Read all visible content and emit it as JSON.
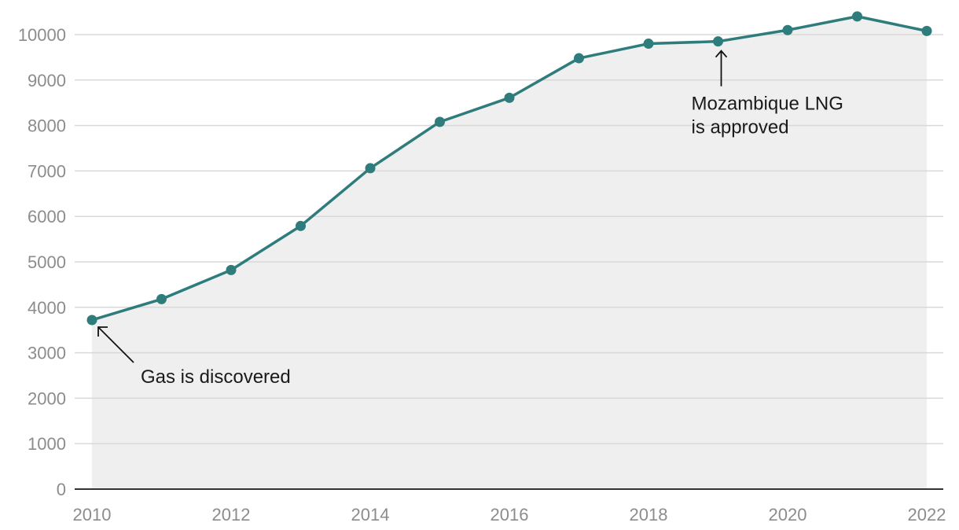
{
  "chart_data": {
    "type": "area",
    "title": "",
    "xlabel": "",
    "ylabel": "",
    "x": [
      2010,
      2011,
      2012,
      2013,
      2014,
      2015,
      2016,
      2017,
      2018,
      2019,
      2020,
      2021,
      2022
    ],
    "series": [
      {
        "values": [
          3720,
          4180,
          4820,
          5790,
          7060,
          8080,
          8610,
          9480,
          9800,
          9850,
          10100,
          10400,
          10080
        ]
      }
    ],
    "xlim": [
      2010,
      2022
    ],
    "ylim": [
      0,
      10000
    ],
    "x_ticks": [
      2010,
      2012,
      2014,
      2016,
      2018,
      2020,
      2022
    ],
    "y_ticks": [
      0,
      1000,
      2000,
      3000,
      4000,
      5000,
      6000,
      7000,
      8000,
      9000,
      10000
    ],
    "grid": "horizontal",
    "colors": {
      "line": "#2e7c7c",
      "area": "#efefef",
      "grid": "#d9d9d9",
      "axis": "#333333"
    },
    "annotations": [
      {
        "x": 2010,
        "y": 3720,
        "lines": [
          "Gas is discovered"
        ]
      },
      {
        "x": 2019,
        "y": 9850,
        "lines": [
          "Mozambique LNG",
          "is approved"
        ]
      }
    ]
  }
}
